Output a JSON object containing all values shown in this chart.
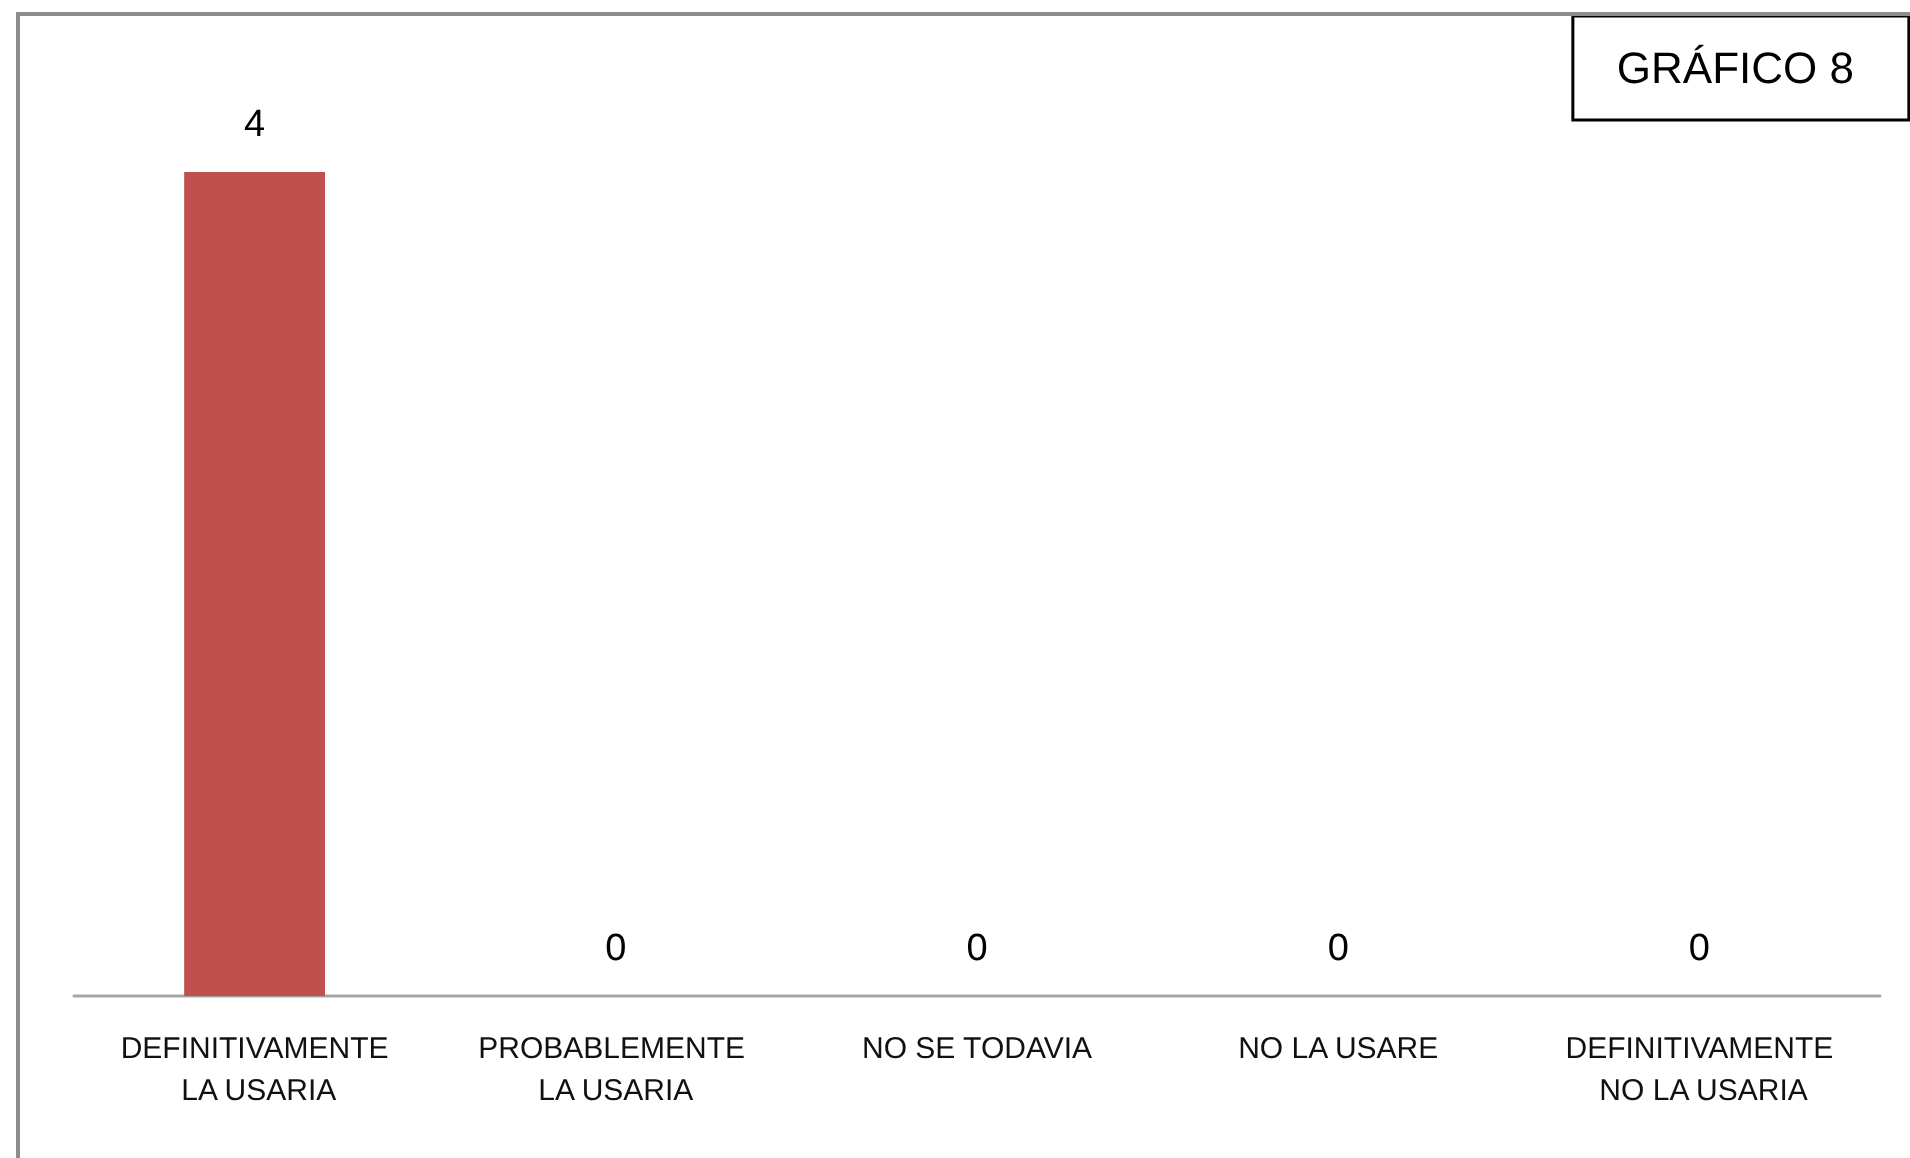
{
  "chart_data": {
    "type": "bar",
    "title": "GRÁFICO 8",
    "categories": [
      "DEFINITIVAMENTE LA USARIA",
      "PROBABLEMENTE LA USARIA",
      "NO SE TODAVIA",
      "NO LA USARE",
      "DEFINITIVAMENTE NO LA USARIA"
    ],
    "values": [
      4,
      0,
      0,
      0,
      0
    ],
    "color": "#c0504d",
    "data_labels": true
  }
}
